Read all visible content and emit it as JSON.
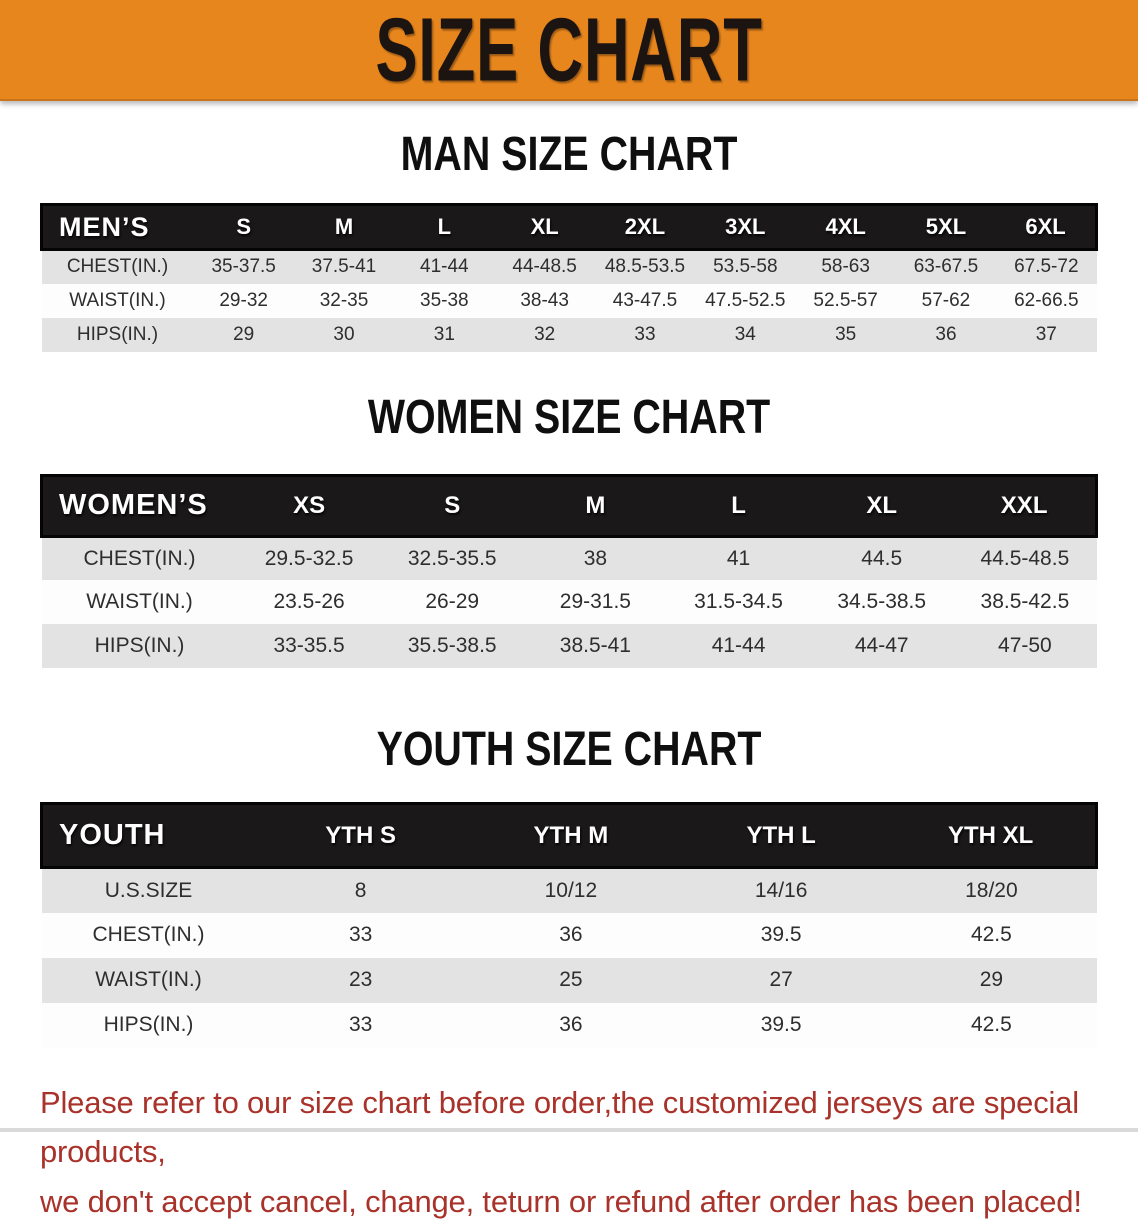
{
  "banner": {
    "title": "SIZE CHART",
    "background": "#e8861e"
  },
  "sections": [
    {
      "key": "men",
      "heading": "MAN SIZE CHART",
      "header_label": "MEN’S",
      "columns": [
        "S",
        "M",
        "L",
        "XL",
        "2XL",
        "3XL",
        "4XL",
        "5XL",
        "6XL"
      ],
      "rows": [
        {
          "label": "CHEST(IN.)",
          "values": [
            "35-37.5",
            "37.5-41",
            "41-44",
            "44-48.5",
            "48.5-53.5",
            "53.5-58",
            "58-63",
            "63-67.5",
            "67.5-72"
          ]
        },
        {
          "label": "WAIST(IN.)",
          "values": [
            "29-32",
            "32-35",
            "35-38",
            "38-43",
            "43-47.5",
            "47.5-52.5",
            "52.5-57",
            "57-62",
            "62-66.5"
          ]
        },
        {
          "label": "HIPS(IN.)",
          "values": [
            "29",
            "30",
            "31",
            "32",
            "33",
            "34",
            "35",
            "36",
            "37"
          ]
        }
      ]
    },
    {
      "key": "women",
      "heading": "WOMEN SIZE CHART",
      "header_label": "WOMEN’S",
      "columns": [
        "XS",
        "S",
        "M",
        "L",
        "XL",
        "XXL"
      ],
      "rows": [
        {
          "label": "CHEST(IN.)",
          "values": [
            "29.5-32.5",
            "32.5-35.5",
            "38",
            "41",
            "44.5",
            "44.5-48.5"
          ]
        },
        {
          "label": "WAIST(IN.)",
          "values": [
            "23.5-26",
            "26-29",
            "29-31.5",
            "31.5-34.5",
            "34.5-38.5",
            "38.5-42.5"
          ]
        },
        {
          "label": "HIPS(IN.)",
          "values": [
            "33-35.5",
            "35.5-38.5",
            "38.5-41",
            "41-44",
            "44-47",
            "47-50"
          ]
        }
      ]
    },
    {
      "key": "youth",
      "heading": "YOUTH SIZE CHART",
      "header_label": "YOUTH",
      "columns": [
        "YTH S",
        "YTH M",
        "YTH L",
        "YTH XL"
      ],
      "rows": [
        {
          "label": "U.S.SIZE",
          "values": [
            "8",
            "10/12",
            "14/16",
            "18/20"
          ]
        },
        {
          "label": "CHEST(IN.)",
          "values": [
            "33",
            "36",
            "39.5",
            "42.5"
          ]
        },
        {
          "label": "WAIST(IN.)",
          "values": [
            "23",
            "25",
            "27",
            "29"
          ]
        },
        {
          "label": "HIPS(IN.)",
          "values": [
            "33",
            "36",
            "39.5",
            "42.5"
          ]
        }
      ]
    }
  ],
  "disclaimer": {
    "line1": "Please refer to our size chart before order,the customized jerseys are special products,",
    "line2": "we don't accept cancel, change, teturn or refund after order has been placed!",
    "color": "#a9322a"
  }
}
